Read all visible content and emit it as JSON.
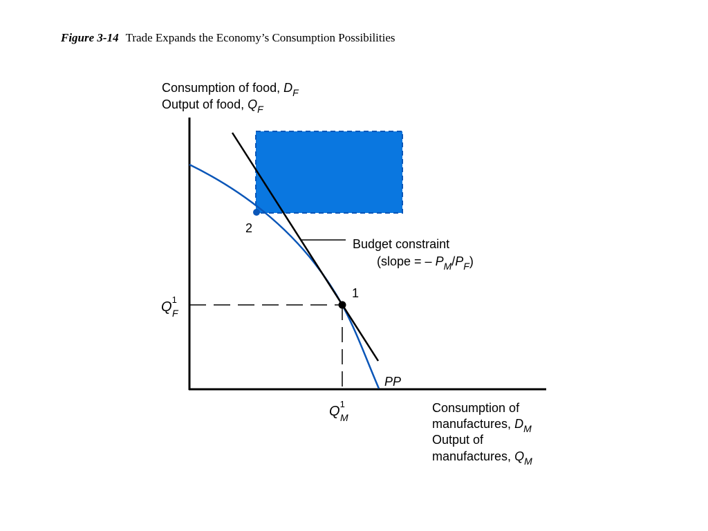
{
  "caption": {
    "figure_number": "Figure 3-14",
    "title": "Trade Expands the Economy’s Consumption Possibilities"
  },
  "colors": {
    "axis": "#000000",
    "curve": "#0a56b8",
    "region_fill": "#0a77e0",
    "region_edge": "#0a56b8",
    "budget_line": "#000000",
    "point_1": "#000000",
    "point_2": "#0a56b8"
  },
  "labels": {
    "y_axis_line1": "Consumption of food, ",
    "y_axis_line1_var": "D",
    "y_axis_line1_sub": "F",
    "y_axis_line2": "Output of food, ",
    "y_axis_line2_var": "Q",
    "y_axis_line2_sub": "F",
    "x_axis_line1": "Consumption of",
    "x_axis_line2": "manufactures, ",
    "x_axis_line2_var": "D",
    "x_axis_line2_sub": "M",
    "x_axis_line3": "Output of",
    "x_axis_line4": "manufactures, ",
    "x_axis_line4_var": "Q",
    "x_axis_line4_sub": "M",
    "budget_constraint": "Budget constraint",
    "slope_prefix": "(slope = – ",
    "slope_var1": "P",
    "slope_sub1": "M",
    "slope_slash": "/",
    "slope_var2": "P",
    "slope_sub2": "F",
    "slope_close": ")",
    "point_1": "1",
    "point_2": "2",
    "curve_name": "PP",
    "qf_var": "Q",
    "qf_sup": "1",
    "qf_sub": "F",
    "qm_var": "Q",
    "qm_sup": "1",
    "qm_sub": "M"
  }
}
